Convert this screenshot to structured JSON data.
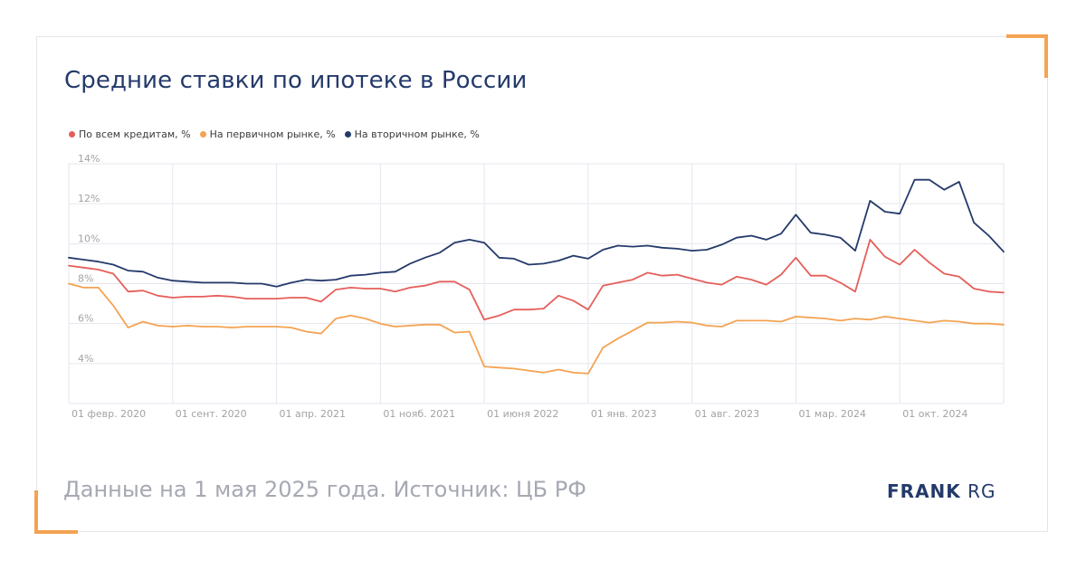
{
  "title": "Средние ставки по ипотеке в России",
  "footer": "Данные на 1 мая 2025 года. Источник: ЦБ РФ",
  "logo": {
    "bold": "FRANK",
    "light": "RG"
  },
  "colors": {
    "all": "#e55f5a",
    "primary": "#f4a352",
    "secondary": "#243a6b",
    "grid": "#e6e6ef",
    "tick": "#a3a3a3"
  },
  "chart_data": {
    "type": "line",
    "title": "Средние ставки по ипотеке в России",
    "ylim": [
      2,
      14
    ],
    "y_ticks": [
      {
        "value": 14,
        "label": "14%"
      },
      {
        "value": 12,
        "label": "12%"
      },
      {
        "value": 10,
        "label": "10%"
      },
      {
        "value": 8,
        "label": "8%"
      },
      {
        "value": 6,
        "label": "6%"
      },
      {
        "value": 4,
        "label": "4%"
      }
    ],
    "x_ticks": [
      {
        "index": 0,
        "label": "01 февр. 2020"
      },
      {
        "index": 7,
        "label": "01 сент. 2020"
      },
      {
        "index": 14,
        "label": "01 апр. 2021"
      },
      {
        "index": 21,
        "label": "01 нояб. 2021"
      },
      {
        "index": 28,
        "label": "01 июня 2022"
      },
      {
        "index": 35,
        "label": "01 янв. 2023"
      },
      {
        "index": 42,
        "label": "01 авг. 2023"
      },
      {
        "index": 49,
        "label": "01 мар. 2024"
      },
      {
        "index": 56,
        "label": "01 окт. 2024"
      }
    ],
    "grid": true,
    "legend": "top-left",
    "series": [
      {
        "name": "По всем кредитам, %",
        "color": "#e55f5a",
        "values": [
          8.9,
          8.8,
          8.7,
          8.5,
          7.6,
          7.65,
          7.4,
          7.3,
          7.35,
          7.35,
          7.4,
          7.35,
          7.25,
          7.25,
          7.25,
          7.3,
          7.3,
          7.1,
          7.7,
          7.8,
          7.75,
          7.75,
          7.6,
          7.8,
          7.9,
          8.1,
          8.1,
          7.7,
          6.2,
          6.4,
          6.7,
          6.7,
          6.75,
          7.4,
          7.15,
          6.7,
          7.9,
          8.05,
          8.2,
          8.55,
          8.4,
          8.45,
          8.25,
          8.05,
          7.95,
          8.35,
          8.2,
          7.95,
          8.45,
          9.3,
          8.4,
          8.4,
          8.05,
          7.6,
          10.2,
          9.35,
          8.95,
          9.7,
          9.05,
          8.5,
          8.35,
          7.75,
          7.6,
          7.55
        ]
      },
      {
        "name": "На первичном рынке, %",
        "color": "#f4a352",
        "values": [
          8.0,
          7.8,
          7.8,
          6.9,
          5.8,
          6.1,
          5.9,
          5.85,
          5.9,
          5.85,
          5.85,
          5.8,
          5.85,
          5.85,
          5.85,
          5.8,
          5.6,
          5.5,
          6.25,
          6.4,
          6.25,
          6.0,
          5.85,
          5.9,
          5.95,
          5.95,
          5.55,
          5.6,
          3.85,
          3.8,
          3.75,
          3.65,
          3.55,
          3.7,
          3.55,
          3.5,
          4.8,
          5.25,
          5.65,
          6.05,
          6.05,
          6.1,
          6.05,
          5.9,
          5.85,
          6.15,
          6.15,
          6.15,
          6.1,
          6.35,
          6.3,
          6.25,
          6.15,
          6.25,
          6.2,
          6.35,
          6.25,
          6.15,
          6.05,
          6.15,
          6.1,
          6.0,
          6.0,
          5.95
        ]
      },
      {
        "name": "На вторичном рынке, %",
        "color": "#243a6b",
        "values": [
          9.3,
          9.2,
          9.1,
          8.95,
          8.65,
          8.6,
          8.3,
          8.15,
          8.1,
          8.05,
          8.05,
          8.05,
          8.0,
          8.0,
          7.85,
          8.05,
          8.2,
          8.15,
          8.2,
          8.4,
          8.45,
          8.55,
          8.6,
          9.0,
          9.3,
          9.55,
          10.05,
          10.2,
          10.05,
          9.3,
          9.25,
          8.95,
          9.0,
          9.15,
          9.4,
          9.25,
          9.7,
          9.9,
          9.85,
          9.9,
          9.8,
          9.75,
          9.65,
          9.7,
          9.95,
          10.3,
          10.4,
          10.2,
          10.5,
          11.45,
          10.55,
          10.45,
          10.3,
          9.65,
          12.15,
          11.6,
          11.5,
          13.2,
          13.2,
          12.7,
          13.1,
          11.05,
          10.4,
          9.6
        ]
      }
    ]
  }
}
